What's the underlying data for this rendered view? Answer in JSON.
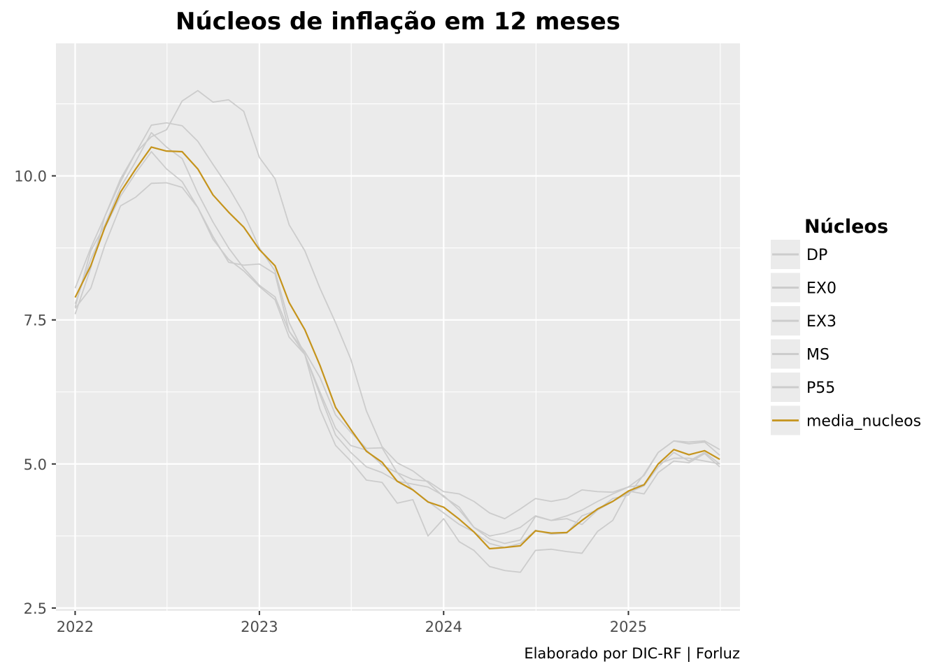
{
  "chart_data": {
    "type": "line",
    "title": "Núcleos de inflação em 12 meses",
    "xlabel": "",
    "ylabel": "",
    "caption": "Elaborado por DIC-RF | Forluz",
    "xlim": [
      "2021-11-24",
      "2025-08-10"
    ],
    "ylim": [
      2.45,
      12.3
    ],
    "x_ticks": [
      "2022",
      "2023",
      "2024",
      "2025"
    ],
    "x_tick_dates": [
      "2022-01-01",
      "2023-01-01",
      "2024-01-01",
      "2025-01-01"
    ],
    "y_ticks": [
      "2.5",
      "5.0",
      "7.5",
      "10.0"
    ],
    "y_tick_values": [
      2.5,
      5.0,
      7.5,
      10.0
    ],
    "grid": true,
    "legend_title": "Núcleos",
    "legend_position": "right",
    "x": [
      "2022-01",
      "2022-02",
      "2022-03",
      "2022-04",
      "2022-05",
      "2022-06",
      "2022-07",
      "2022-08",
      "2022-09",
      "2022-10",
      "2022-11",
      "2022-12",
      "2023-01",
      "2023-02",
      "2023-03",
      "2023-04",
      "2023-05",
      "2023-06",
      "2023-07",
      "2023-08",
      "2023-09",
      "2023-10",
      "2023-11",
      "2023-12",
      "2024-01",
      "2024-02",
      "2024-03",
      "2024-04",
      "2024-05",
      "2024-06",
      "2024-07",
      "2024-08",
      "2024-09",
      "2024-10",
      "2024-11",
      "2024-12",
      "2025-01",
      "2025-02",
      "2025-03",
      "2025-04",
      "2025-05",
      "2025-06",
      "2025-07"
    ],
    "series": [
      {
        "name": "DP",
        "color": "#cccccc",
        "values": [
          8.05,
          8.75,
          9.3,
          9.95,
          10.4,
          10.88,
          10.92,
          10.87,
          10.6,
          10.2,
          9.8,
          9.35,
          8.75,
          8.35,
          7.45,
          6.9,
          6.2,
          5.5,
          5.2,
          4.95,
          4.85,
          4.7,
          4.65,
          4.6,
          4.45,
          4.2,
          3.9,
          3.75,
          3.8,
          3.9,
          4.1,
          4.02,
          4.1,
          4.2,
          4.35,
          4.48,
          4.6,
          4.8,
          5.2,
          5.4,
          5.38,
          5.4,
          5.25
        ]
      },
      {
        "name": "EX0",
        "color": "#cccccc",
        "values": [
          7.72,
          8.7,
          9.15,
          9.8,
          10.25,
          10.75,
          10.5,
          10.3,
          9.7,
          9.2,
          8.75,
          8.4,
          8.1,
          7.9,
          7.3,
          6.95,
          6.5,
          5.85,
          5.55,
          5.27,
          5.28,
          4.85,
          4.55,
          4.35,
          4.15,
          3.95,
          3.82,
          3.62,
          3.55,
          3.62,
          3.85,
          3.78,
          3.8,
          4.1,
          4.2,
          4.35,
          4.5,
          4.62,
          4.95,
          5.2,
          5.05,
          5.2,
          5.0
        ]
      },
      {
        "name": "EX3",
        "color": "#cccccc",
        "values": [
          7.6,
          8.4,
          9.3,
          9.9,
          10.4,
          10.68,
          10.8,
          11.3,
          11.48,
          11.28,
          11.32,
          11.12,
          10.32,
          9.95,
          9.15,
          8.7,
          8.05,
          7.45,
          6.82,
          5.92,
          5.3,
          5.02,
          4.88,
          4.68,
          4.43,
          4.25,
          3.9,
          3.7,
          3.62,
          3.68,
          4.09,
          4.02,
          4.05,
          3.95,
          4.2,
          4.4,
          4.46,
          4.82,
          5.2,
          5.4,
          5.35,
          5.38,
          5.15
        ]
      },
      {
        "name": "MS",
        "color": "#cccccc",
        "values": [
          7.7,
          8.05,
          8.8,
          9.48,
          9.63,
          9.87,
          9.88,
          9.8,
          9.45,
          8.95,
          8.5,
          8.45,
          8.47,
          8.3,
          7.3,
          6.9,
          6.25,
          5.62,
          5.32,
          5.24,
          4.98,
          4.85,
          4.73,
          4.7,
          4.52,
          4.48,
          4.35,
          4.15,
          4.05,
          4.22,
          4.4,
          4.35,
          4.4,
          4.55,
          4.52,
          4.51,
          4.6,
          4.64,
          5.0,
          5.1,
          5.1,
          5.05,
          5.0
        ]
      },
      {
        "name": "P55",
        "color": "#cccccc",
        "values": [
          7.78,
          8.55,
          9.1,
          9.65,
          10.05,
          10.42,
          10.12,
          9.9,
          9.45,
          8.9,
          8.55,
          8.35,
          8.08,
          7.85,
          7.2,
          6.9,
          5.95,
          5.32,
          5.05,
          4.72,
          4.68,
          4.32,
          4.38,
          3.75,
          4.05,
          3.65,
          3.5,
          3.22,
          3.15,
          3.12,
          3.5,
          3.52,
          3.48,
          3.45,
          3.83,
          4.02,
          4.53,
          4.48,
          4.85,
          5.05,
          5.02,
          5.18,
          4.95
        ]
      },
      {
        "name": "media_nucleos",
        "color": "#c5941c",
        "values": [
          7.89,
          8.44,
          9.11,
          9.72,
          10.12,
          10.5,
          10.43,
          10.42,
          10.12,
          9.67,
          9.37,
          9.11,
          8.72,
          8.44,
          7.8,
          7.33,
          6.71,
          5.98,
          5.6,
          5.22,
          5.03,
          4.7,
          4.55,
          4.34,
          4.25,
          4.04,
          3.82,
          3.53,
          3.55,
          3.58,
          3.84,
          3.8,
          3.81,
          4.02,
          4.22,
          4.35,
          4.53,
          4.64,
          5.0,
          5.25,
          5.16,
          5.23,
          5.08
        ]
      }
    ]
  }
}
